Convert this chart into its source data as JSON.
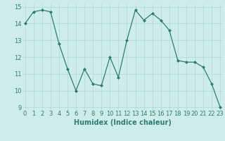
{
  "x": [
    0,
    1,
    2,
    3,
    4,
    5,
    6,
    7,
    8,
    9,
    10,
    11,
    12,
    13,
    14,
    15,
    16,
    17,
    18,
    19,
    20,
    21,
    22,
    23
  ],
  "y": [
    14.0,
    14.7,
    14.8,
    14.7,
    12.8,
    11.3,
    10.0,
    11.3,
    10.4,
    10.3,
    12.0,
    10.8,
    13.0,
    14.8,
    14.2,
    14.6,
    14.2,
    13.6,
    11.8,
    11.7,
    11.7,
    11.4,
    10.4,
    9.0
  ],
  "xlabel": "Humidex (Indice chaleur)",
  "ylabel": "",
  "ylim": [
    9,
    15
  ],
  "xlim": [
    -0.3,
    23.3
  ],
  "yticks": [
    9,
    10,
    11,
    12,
    13,
    14,
    15
  ],
  "xticks": [
    0,
    1,
    2,
    3,
    4,
    5,
    6,
    7,
    8,
    9,
    10,
    11,
    12,
    13,
    14,
    15,
    16,
    17,
    18,
    19,
    20,
    21,
    22,
    23
  ],
  "line_color": "#2e7d6e",
  "marker": "D",
  "marker_size": 2.0,
  "line_width": 0.9,
  "bg_color": "#ceecea",
  "grid_color": "#aed8d4",
  "label_fontsize": 7,
  "tick_fontsize": 6
}
